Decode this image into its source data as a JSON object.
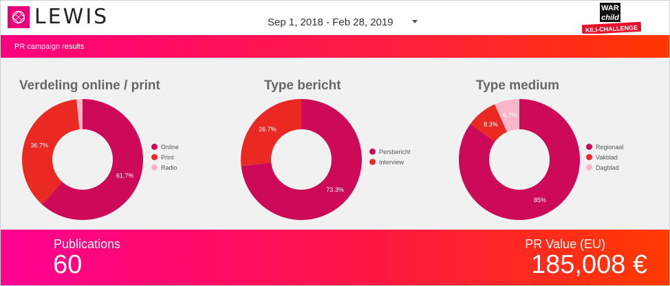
{
  "header": {
    "logo_text": "LEWIS",
    "date_range": "Sep 1, 2018 - Feb 28, 2019",
    "sponsor": {
      "line1": "WAR",
      "line2": "child",
      "line3": "KILI-CHALLENGE"
    }
  },
  "banner": {
    "title": "PR campaign results"
  },
  "charts": [
    {
      "title": "Verdeling online / print",
      "slices": [
        {
          "label": "Online",
          "value": 61.7,
          "display": "61.7%",
          "color": "#cc0a57"
        },
        {
          "label": "Print",
          "value": 36.7,
          "display": "36.7%",
          "color": "#ea2a22"
        },
        {
          "label": "Radio",
          "value": 1.6,
          "display": "",
          "color": "#f9b6c8"
        }
      ]
    },
    {
      "title": "Type bericht",
      "slices": [
        {
          "label": "Persbericht",
          "value": 73.3,
          "display": "73.3%",
          "color": "#cc0a57"
        },
        {
          "label": "Interview",
          "value": 26.7,
          "display": "26.7%",
          "color": "#ea2a22"
        }
      ]
    },
    {
      "title": "Type medium",
      "slices": [
        {
          "label": "Regionaal",
          "value": 85,
          "display": "85%",
          "color": "#cc0a57"
        },
        {
          "label": "Vakblad",
          "value": 8.3,
          "display": "8.3%",
          "color": "#ea2a22"
        },
        {
          "label": "Dagblad",
          "value": 6.7,
          "display": "6.7%",
          "color": "#f9b6c8"
        }
      ]
    }
  ],
  "kpis": {
    "publications": {
      "label": "Publications",
      "value": "60"
    },
    "pr_value": {
      "label": "PR Value (EU)",
      "value": "185,008 €"
    }
  }
}
